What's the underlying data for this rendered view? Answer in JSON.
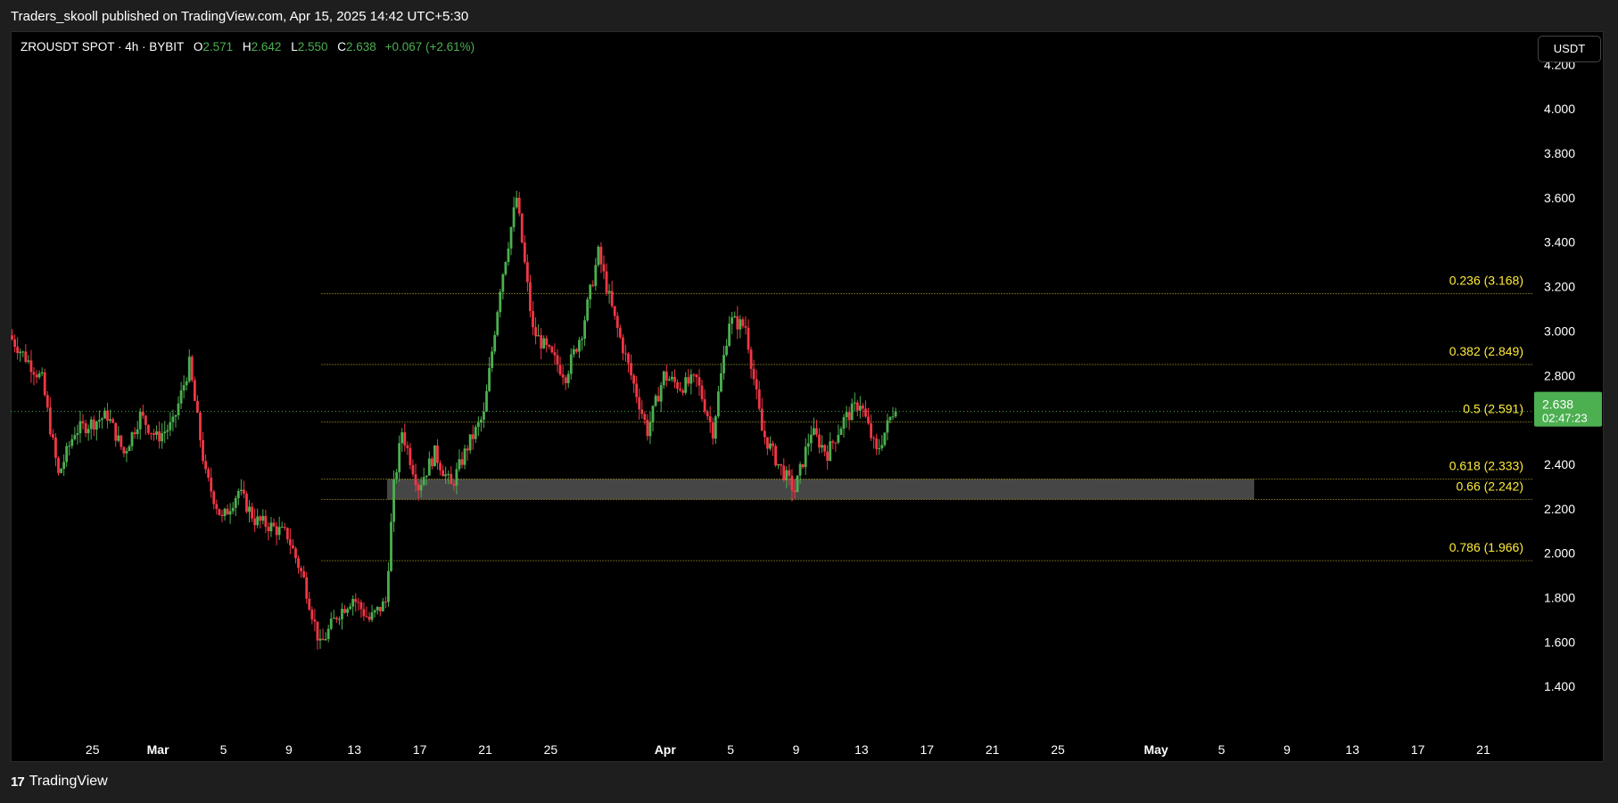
{
  "header": {
    "published": "Traders_skooll published on TradingView.com, Apr 15, 2025 14:42 UTC+5:30"
  },
  "legend": {
    "symbol": "ZROUSDT SPOT · 4h · BYBIT",
    "o_label": "O",
    "o_value": "2.571",
    "h_label": "H",
    "h_value": "2.642",
    "l_label": "L",
    "l_value": "2.550",
    "c_label": "C",
    "c_value": "2.638",
    "change": "+0.067 (+2.61%)"
  },
  "currency_button": "USDT",
  "footer": {
    "brand": "TradingView",
    "logo": "17"
  },
  "colors": {
    "up": "#4caf50",
    "down": "#f23645",
    "fib": "#ffeb3b",
    "zone": "#5d5d5d",
    "price_tag": "#4caf50"
  },
  "chart_data": {
    "type": "candlestick",
    "symbol": "ZROUSDT",
    "timeframe": "4h",
    "ylim": [
      1.2,
      4.35
    ],
    "y_ticks": [
      "4.200",
      "4.000",
      "3.800",
      "3.600",
      "3.400",
      "3.200",
      "3.000",
      "2.800",
      "2.600",
      "2.400",
      "2.200",
      "2.000",
      "1.800",
      "1.600",
      "1.400"
    ],
    "y_tick_values": [
      4.2,
      4.0,
      3.8,
      3.6,
      3.4,
      3.2,
      3.0,
      2.8,
      2.6,
      2.4,
      2.2,
      2.0,
      1.8,
      1.6,
      1.4
    ],
    "x_ticks": [
      {
        "label": "25",
        "date": "2025-02-25",
        "bold": false
      },
      {
        "label": "Mar",
        "date": "2025-03-01",
        "bold": true
      },
      {
        "label": "5",
        "date": "2025-03-05",
        "bold": false
      },
      {
        "label": "9",
        "date": "2025-03-09",
        "bold": false
      },
      {
        "label": "13",
        "date": "2025-03-13",
        "bold": false
      },
      {
        "label": "17",
        "date": "2025-03-17",
        "bold": false
      },
      {
        "label": "21",
        "date": "2025-03-21",
        "bold": false
      },
      {
        "label": "25",
        "date": "2025-03-25",
        "bold": false
      },
      {
        "label": "Apr",
        "date": "2025-04-01",
        "bold": true
      },
      {
        "label": "5",
        "date": "2025-04-05",
        "bold": false
      },
      {
        "label": "9",
        "date": "2025-04-09",
        "bold": false
      },
      {
        "label": "13",
        "date": "2025-04-13",
        "bold": false
      },
      {
        "label": "17",
        "date": "2025-04-17",
        "bold": false
      },
      {
        "label": "21",
        "date": "2025-04-21",
        "bold": false
      },
      {
        "label": "25",
        "date": "2025-04-25",
        "bold": false
      },
      {
        "label": "May",
        "date": "2025-05-01",
        "bold": true
      },
      {
        "label": "5",
        "date": "2025-05-05",
        "bold": false
      },
      {
        "label": "9",
        "date": "2025-05-09",
        "bold": false
      },
      {
        "label": "13",
        "date": "2025-05-13",
        "bold": false
      },
      {
        "label": "17",
        "date": "2025-05-17",
        "bold": false
      },
      {
        "label": "21",
        "date": "2025-05-21",
        "bold": false
      }
    ],
    "x_range": [
      "2025-02-20",
      "2025-05-24"
    ],
    "price_path": [
      {
        "date": "2025-02-20",
        "price": 2.98
      },
      {
        "date": "2025-02-22",
        "price": 2.78
      },
      {
        "date": "2025-02-23",
        "price": 2.35
      },
      {
        "date": "2025-02-24",
        "price": 2.55
      },
      {
        "date": "2025-02-26",
        "price": 2.62
      },
      {
        "date": "2025-02-27",
        "price": 2.45
      },
      {
        "date": "2025-02-28",
        "price": 2.62
      },
      {
        "date": "2025-03-01",
        "price": 2.52
      },
      {
        "date": "2025-03-02",
        "price": 2.58
      },
      {
        "date": "2025-03-03",
        "price": 2.85
      },
      {
        "date": "2025-03-04",
        "price": 2.35
      },
      {
        "date": "2025-03-05",
        "price": 2.15
      },
      {
        "date": "2025-03-06",
        "price": 2.28
      },
      {
        "date": "2025-03-07",
        "price": 2.15
      },
      {
        "date": "2025-03-08",
        "price": 2.12
      },
      {
        "date": "2025-03-09",
        "price": 2.08
      },
      {
        "date": "2025-03-10",
        "price": 1.88
      },
      {
        "date": "2025-03-11",
        "price": 1.58
      },
      {
        "date": "2025-03-12",
        "price": 1.72
      },
      {
        "date": "2025-03-13",
        "price": 1.8
      },
      {
        "date": "2025-03-14",
        "price": 1.7
      },
      {
        "date": "2025-03-15",
        "price": 1.78
      },
      {
        "date": "2025-03-15.5",
        "price": 2.3
      },
      {
        "date": "2025-03-16",
        "price": 2.55
      },
      {
        "date": "2025-03-17",
        "price": 2.3
      },
      {
        "date": "2025-03-18",
        "price": 2.45
      },
      {
        "date": "2025-03-19",
        "price": 2.3
      },
      {
        "date": "2025-03-20",
        "price": 2.48
      },
      {
        "date": "2025-03-21",
        "price": 2.62
      },
      {
        "date": "2025-03-22",
        "price": 3.2
      },
      {
        "date": "2025-03-23",
        "price": 3.6
      },
      {
        "date": "2025-03-24",
        "price": 3.0
      },
      {
        "date": "2025-03-25",
        "price": 2.9
      },
      {
        "date": "2025-03-26",
        "price": 2.8
      },
      {
        "date": "2025-03-27",
        "price": 3.0
      },
      {
        "date": "2025-03-28",
        "price": 3.35
      },
      {
        "date": "2025-03-29",
        "price": 3.05
      },
      {
        "date": "2025-03-30",
        "price": 2.8
      },
      {
        "date": "2025-03-31",
        "price": 2.55
      },
      {
        "date": "2025-04-01",
        "price": 2.8
      },
      {
        "date": "2025-04-02",
        "price": 2.75
      },
      {
        "date": "2025-04-03",
        "price": 2.78
      },
      {
        "date": "2025-04-04",
        "price": 2.55
      },
      {
        "date": "2025-04-05",
        "price": 3.05
      },
      {
        "date": "2025-04-06",
        "price": 3.02
      },
      {
        "date": "2025-04-07",
        "price": 2.55
      },
      {
        "date": "2025-04-08",
        "price": 2.4
      },
      {
        "date": "2025-04-09",
        "price": 2.28
      },
      {
        "date": "2025-04-10",
        "price": 2.55
      },
      {
        "date": "2025-04-11",
        "price": 2.45
      },
      {
        "date": "2025-04-12",
        "price": 2.6
      },
      {
        "date": "2025-04-13",
        "price": 2.68
      },
      {
        "date": "2025-04-14",
        "price": 2.45
      },
      {
        "date": "2025-04-15",
        "price": 2.638
      }
    ],
    "fib_levels": [
      {
        "label": "0.236 (3.168)",
        "price": 3.168
      },
      {
        "label": "0.382 (2.849)",
        "price": 2.849
      },
      {
        "label": "0.5 (2.591)",
        "price": 2.591
      },
      {
        "label": "0.618 (2.333)",
        "price": 2.333
      },
      {
        "label": "0.66 (2.242)",
        "price": 2.242
      },
      {
        "label": "0.786 (1.966)",
        "price": 1.966
      }
    ],
    "fib_start_date": "2025-03-11",
    "zone": {
      "low": 2.242,
      "high": 2.333,
      "start": "2025-03-15",
      "end": "2025-05-07"
    },
    "last_price": {
      "label": "2.638",
      "countdown": "02:47:23",
      "value": 2.638
    }
  }
}
